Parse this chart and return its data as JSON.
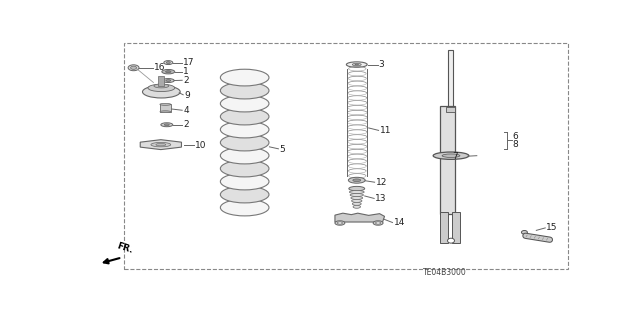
{
  "bg_color": "#ffffff",
  "border_color": "#888888",
  "bottom_code": "TE04B3000",
  "gc": "#666666",
  "tc": "#222222"
}
